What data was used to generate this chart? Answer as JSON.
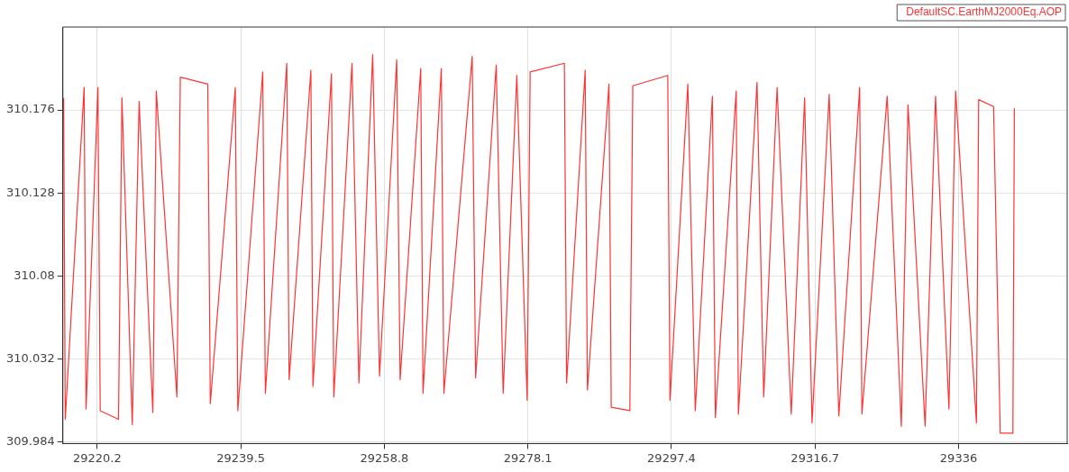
{
  "chart_data": {
    "type": "line",
    "legend": "top right",
    "grid": true,
    "marker": "none",
    "line_style": "solid",
    "xlim": [
      29215.58,
      29350.6
    ],
    "xticks": [
      29220.2,
      29239.5,
      29258.8,
      29278.1,
      29297.4,
      29316.7,
      29336
    ],
    "ylim": [
      309.983,
      310.224
    ],
    "yticks": [
      309.984,
      310.032,
      310.08,
      310.128,
      310.176
    ],
    "series": [
      {
        "name": "DefaultSC.EarthMJ2000Eq.AOP",
        "color": "#ff3333",
        "x": [
          29215.68,
          29215.9,
          29218.44,
          29218.7,
          29220.29,
          29220.6,
          29223.06,
          29223.52,
          29224.91,
          29225.83,
          29227.68,
          29228.14,
          29230.91,
          29231.37,
          29235.06,
          29235.4,
          29238.76,
          29239.1,
          29242.45,
          29242.8,
          29245.68,
          29246.0,
          29248.92,
          29249.2,
          29251.69,
          29252.0,
          29254.45,
          29255.38,
          29257.23,
          29258.15,
          29260.46,
          29260.92,
          29263.69,
          29264.0,
          29266.46,
          29266.8,
          29270.61,
          29271.07,
          29273.84,
          29274.77,
          29276.61,
          29278.0,
          29278.4,
          29283.0,
          29283.3,
          29285.8,
          29286.1,
          29289.0,
          29289.3,
          29291.8,
          29292.2,
          29296.9,
          29297.2,
          29299.6,
          29300.6,
          29302.9,
          29303.3,
          29306.1,
          29306.4,
          29308.9,
          29309.8,
          29311.6,
          29313.5,
          29315.3,
          29316.3,
          29318.6,
          29319.9,
          29322.7,
          29323.0,
          29326.4,
          29328.3,
          29329.2,
          29331.5,
          29332.9,
          29334.7,
          29335.6,
          29338.4,
          29338.7,
          29340.7,
          29341.6,
          29343.3,
          29343.5
        ],
        "values": [
          310.183,
          309.997,
          310.189,
          310.003,
          310.189,
          310.002,
          309.997,
          310.183,
          309.994,
          310.181,
          310.001,
          310.187,
          310.01,
          310.195,
          310.191,
          310.006,
          310.189,
          310.002,
          310.198,
          310.012,
          310.203,
          310.02,
          310.199,
          310.016,
          310.197,
          310.01,
          310.203,
          310.018,
          310.208,
          310.022,
          310.205,
          310.02,
          310.2,
          310.012,
          310.2,
          310.012,
          310.207,
          310.021,
          310.202,
          310.012,
          310.196,
          310.008,
          310.198,
          310.203,
          310.018,
          310.199,
          310.014,
          310.191,
          310.004,
          310.002,
          310.19,
          310.196,
          310.008,
          310.191,
          310.002,
          310.184,
          309.998,
          310.187,
          310.0,
          310.192,
          310.01,
          310.189,
          310.0,
          310.183,
          309.995,
          310.185,
          309.999,
          310.189,
          310.0,
          310.184,
          309.993,
          310.179,
          309.993,
          310.184,
          310.003,
          310.187,
          309.995,
          310.182,
          310.178,
          309.989,
          309.989,
          310.177
        ]
      }
    ]
  }
}
